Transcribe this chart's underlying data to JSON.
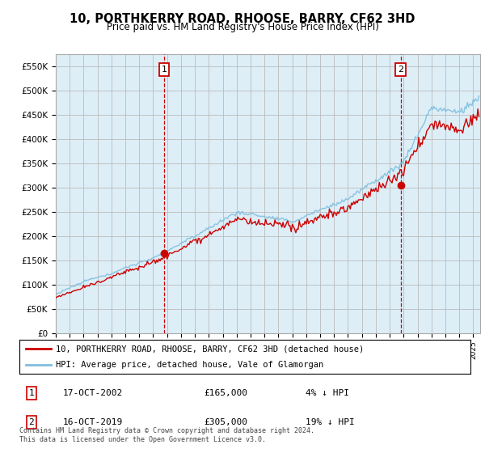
{
  "title": "10, PORTHKERRY ROAD, RHOOSE, BARRY, CF62 3HD",
  "subtitle": "Price paid vs. HM Land Registry's House Price Index (HPI)",
  "ylabel_ticks": [
    "£0",
    "£50K",
    "£100K",
    "£150K",
    "£200K",
    "£250K",
    "£300K",
    "£350K",
    "£400K",
    "£450K",
    "£500K",
    "£550K"
  ],
  "ytick_values": [
    0,
    50000,
    100000,
    150000,
    200000,
    250000,
    300000,
    350000,
    400000,
    450000,
    500000,
    550000
  ],
  "ylim": [
    0,
    575000
  ],
  "xlim_start": 1995.0,
  "xlim_end": 2025.5,
  "sale1_x": 2002.79,
  "sale1_y": 165000,
  "sale1_label": "1",
  "sale1_date": "17-OCT-2002",
  "sale1_price": "£165,000",
  "sale1_note": "4% ↓ HPI",
  "sale2_x": 2019.79,
  "sale2_y": 305000,
  "sale2_label": "2",
  "sale2_date": "16-OCT-2019",
  "sale2_price": "£305,000",
  "sale2_note": "19% ↓ HPI",
  "hpi_color": "#7fbfdf",
  "price_color": "#cc0000",
  "vline_color": "#cc0000",
  "chart_bg_color": "#ddeef7",
  "background_color": "#ffffff",
  "grid_color": "#bbbbbb",
  "legend_label_price": "10, PORTHKERRY ROAD, RHOOSE, BARRY, CF62 3HD (detached house)",
  "legend_label_hpi": "HPI: Average price, detached house, Vale of Glamorgan",
  "footnote": "Contains HM Land Registry data © Crown copyright and database right 2024.\nThis data is licensed under the Open Government Licence v3.0."
}
